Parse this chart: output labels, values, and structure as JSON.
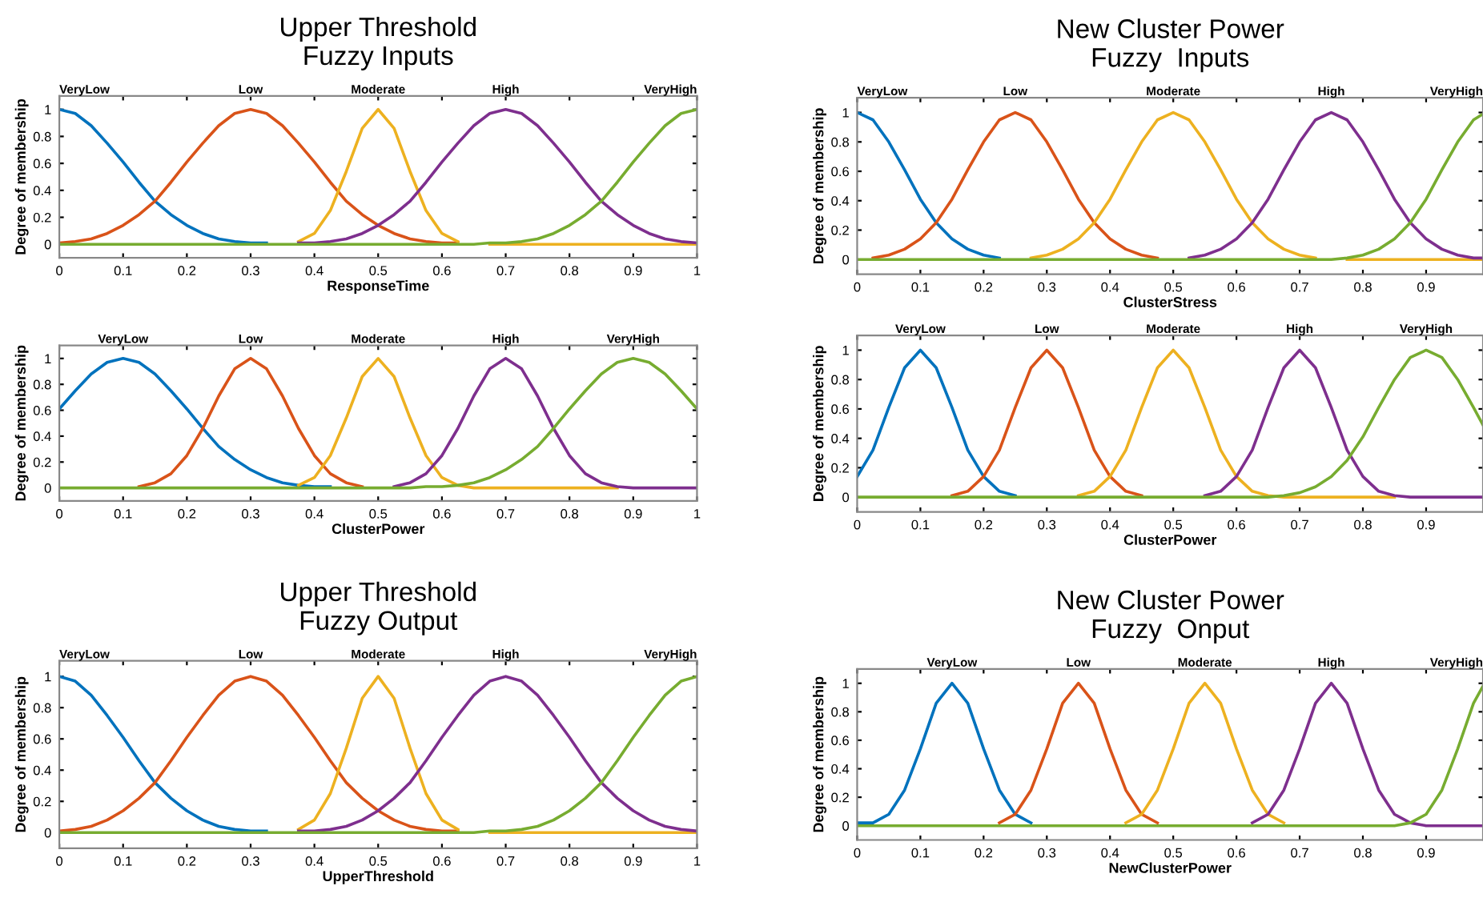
{
  "chart_data": [
    {
      "type": "line",
      "title": "Upper Threshold\nFuzzy Inputs",
      "xlabel": "ResponseTime",
      "ylabel": "Degree of membership",
      "xlim": [
        0,
        1
      ],
      "ylim": [
        -0.1,
        1.1
      ],
      "xticks": [
        0,
        0.1,
        0.2,
        0.3,
        0.4,
        0.5,
        0.6,
        0.7,
        0.8,
        0.9,
        1
      ],
      "yticks": [
        0,
        0.2,
        0.4,
        0.6,
        0.8,
        1
      ],
      "grid": false,
      "legend": false,
      "marker": "none",
      "line_style": "solid",
      "x": [
        0,
        0.025,
        0.05,
        0.075,
        0.1,
        0.125,
        0.15,
        0.175,
        0.2,
        0.225,
        0.25,
        0.275,
        0.3,
        0.325,
        0.35,
        0.375,
        0.4,
        0.425,
        0.45,
        0.475,
        0.5,
        0.525,
        0.55,
        0.575,
        0.6,
        0.625,
        0.65,
        0.675,
        0.7,
        0.725,
        0.75,
        0.775,
        0.8,
        0.825,
        0.85,
        0.875,
        0.9,
        0.925,
        0.95,
        0.975,
        1
      ],
      "series": [
        {
          "name": "VeryLow",
          "color": "#0072bd",
          "values": [
            1,
            0.97,
            0.88,
            0.75,
            0.61,
            0.46,
            0.32,
            0.22,
            0.14,
            0.08,
            0.04,
            0.02,
            0.01,
            0.01,
            null,
            null,
            null,
            null,
            null,
            null,
            null,
            null,
            null,
            null,
            null,
            null,
            null,
            null,
            null,
            null,
            null,
            null,
            null,
            null,
            null,
            null,
            null,
            null,
            null,
            null,
            null
          ]
        },
        {
          "name": "Low",
          "color": "#d95319",
          "values": [
            0.01,
            0.02,
            0.04,
            0.08,
            0.14,
            0.22,
            0.32,
            0.46,
            0.61,
            0.75,
            0.88,
            0.97,
            1,
            0.97,
            0.88,
            0.75,
            0.61,
            0.46,
            0.32,
            0.22,
            0.14,
            0.08,
            0.04,
            0.02,
            0.01,
            0.01,
            null,
            null,
            null,
            null,
            null,
            null,
            null,
            null,
            null,
            null,
            null,
            null,
            null,
            null,
            null
          ]
        },
        {
          "name": "Moderate",
          "color": "#edb120",
          "values": [
            null,
            null,
            null,
            null,
            null,
            null,
            null,
            null,
            null,
            null,
            null,
            null,
            null,
            null,
            null,
            0.02,
            0.08,
            0.25,
            0.54,
            0.86,
            1,
            0.86,
            0.54,
            0.25,
            0.08,
            0.02,
            null,
            0,
            0,
            0,
            0,
            0,
            0,
            0,
            0,
            0,
            0,
            0,
            0,
            0,
            0
          ]
        },
        {
          "name": "High",
          "color": "#7e2f8e",
          "values": [
            null,
            null,
            null,
            null,
            null,
            null,
            null,
            null,
            null,
            null,
            null,
            null,
            null,
            null,
            null,
            0.01,
            0.01,
            0.02,
            0.04,
            0.08,
            0.14,
            0.22,
            0.32,
            0.46,
            0.61,
            0.75,
            0.88,
            0.97,
            1,
            0.97,
            0.88,
            0.75,
            0.61,
            0.46,
            0.32,
            0.22,
            0.14,
            0.08,
            0.04,
            0.02,
            0.01
          ]
        },
        {
          "name": "VeryHigh",
          "color": "#77ac30",
          "values": [
            0,
            0,
            0,
            0,
            0,
            0,
            0,
            0,
            0,
            0,
            0,
            0,
            0,
            0,
            0,
            0,
            0,
            0,
            0,
            0,
            0,
            0,
            0,
            0,
            0,
            0,
            0,
            0.01,
            0.01,
            0.02,
            0.04,
            0.08,
            0.14,
            0.22,
            0.32,
            0.46,
            0.61,
            0.75,
            0.88,
            0.97,
            1
          ]
        }
      ]
    },
    {
      "type": "line",
      "xlabel": "ClusterPower",
      "ylabel": "Degree of membership",
      "xlim": [
        0,
        1
      ],
      "ylim": [
        -0.1,
        1.1
      ],
      "xticks": [
        0,
        0.1,
        0.2,
        0.3,
        0.4,
        0.5,
        0.6,
        0.7,
        0.8,
        0.9,
        1
      ],
      "yticks": [
        0,
        0.2,
        0.4,
        0.6,
        0.8,
        1
      ],
      "grid": false,
      "legend": false,
      "marker": "none",
      "line_style": "solid",
      "x": [
        0,
        0.025,
        0.05,
        0.075,
        0.1,
        0.125,
        0.15,
        0.175,
        0.2,
        0.225,
        0.25,
        0.275,
        0.3,
        0.325,
        0.35,
        0.375,
        0.4,
        0.425,
        0.45,
        0.475,
        0.5,
        0.525,
        0.55,
        0.575,
        0.6,
        0.625,
        0.65,
        0.675,
        0.7,
        0.725,
        0.75,
        0.775,
        0.8,
        0.825,
        0.85,
        0.875,
        0.9,
        0.925,
        0.95,
        0.975,
        1
      ],
      "series": [
        {
          "name": "VeryLow",
          "color": "#0072bd",
          "values": [
            0.61,
            0.75,
            0.88,
            0.97,
            1,
            0.97,
            0.88,
            0.75,
            0.61,
            0.46,
            0.32,
            0.22,
            0.14,
            0.08,
            0.04,
            0.02,
            0.01,
            0.01,
            null,
            null,
            null,
            null,
            null,
            null,
            null,
            null,
            null,
            null,
            null,
            null,
            null,
            null,
            null,
            null,
            null,
            null,
            null,
            null,
            null,
            null,
            null
          ]
        },
        {
          "name": "Low",
          "color": "#d95319",
          "values": [
            null,
            null,
            null,
            null,
            null,
            0.01,
            0.04,
            0.11,
            0.25,
            0.46,
            0.71,
            0.92,
            1,
            0.92,
            0.71,
            0.46,
            0.25,
            0.11,
            0.04,
            0.01,
            null,
            null,
            null,
            null,
            null,
            null,
            null,
            null,
            null,
            null,
            null,
            null,
            null,
            null,
            null,
            null,
            null,
            null,
            null,
            null,
            null
          ]
        },
        {
          "name": "Moderate",
          "color": "#edb120",
          "values": [
            null,
            null,
            null,
            null,
            null,
            null,
            null,
            null,
            null,
            null,
            null,
            null,
            null,
            null,
            null,
            0.02,
            0.08,
            0.25,
            0.54,
            0.86,
            1,
            0.86,
            0.54,
            0.25,
            0.08,
            0.02,
            0,
            0,
            0,
            0,
            0,
            0,
            0,
            0,
            0,
            0,
            null,
            null,
            null,
            null,
            null
          ]
        },
        {
          "name": "High",
          "color": "#7e2f8e",
          "values": [
            null,
            null,
            null,
            null,
            null,
            null,
            null,
            null,
            null,
            null,
            null,
            null,
            null,
            null,
            null,
            null,
            null,
            null,
            null,
            null,
            null,
            0.01,
            0.04,
            0.11,
            0.25,
            0.46,
            0.71,
            0.92,
            1,
            0.92,
            0.71,
            0.46,
            0.25,
            0.11,
            0.04,
            0.01,
            0,
            0,
            0,
            0,
            0
          ]
        },
        {
          "name": "VeryHigh",
          "color": "#77ac30",
          "values": [
            0,
            0,
            0,
            0,
            0,
            0,
            0,
            0,
            0,
            0,
            0,
            0,
            0,
            0,
            0,
            0,
            0,
            0,
            0,
            0,
            0,
            0,
            0,
            0.01,
            0.01,
            0.02,
            0.04,
            0.08,
            0.14,
            0.22,
            0.32,
            0.46,
            0.61,
            0.75,
            0.88,
            0.97,
            1,
            0.97,
            0.88,
            0.75,
            0.61
          ]
        }
      ]
    },
    {
      "type": "line",
      "title": "Upper Threshold\nFuzzy Output",
      "xlabel": "UpperThreshold",
      "ylabel": "Degree of membership",
      "xlim": [
        0,
        1
      ],
      "ylim": [
        -0.1,
        1.1
      ],
      "xticks": [
        0,
        0.1,
        0.2,
        0.3,
        0.4,
        0.5,
        0.6,
        0.7,
        0.8,
        0.9,
        1
      ],
      "yticks": [
        0,
        0.2,
        0.4,
        0.6,
        0.8,
        1
      ],
      "grid": false,
      "legend": false,
      "marker": "none",
      "line_style": "solid",
      "x": [
        0,
        0.025,
        0.05,
        0.075,
        0.1,
        0.125,
        0.15,
        0.175,
        0.2,
        0.225,
        0.25,
        0.275,
        0.3,
        0.325,
        0.35,
        0.375,
        0.4,
        0.425,
        0.45,
        0.475,
        0.5,
        0.525,
        0.55,
        0.575,
        0.6,
        0.625,
        0.65,
        0.675,
        0.7,
        0.725,
        0.75,
        0.775,
        0.8,
        0.825,
        0.85,
        0.875,
        0.9,
        0.925,
        0.95,
        0.975,
        1
      ],
      "series": [
        {
          "name": "VeryLow",
          "color": "#0072bd",
          "values": [
            1,
            0.97,
            0.88,
            0.75,
            0.61,
            0.46,
            0.32,
            0.22,
            0.14,
            0.08,
            0.04,
            0.02,
            0.01,
            0.01,
            null,
            null,
            null,
            null,
            null,
            null,
            null,
            null,
            null,
            null,
            null,
            null,
            null,
            null,
            null,
            null,
            null,
            null,
            null,
            null,
            null,
            null,
            null,
            null,
            null,
            null,
            null
          ]
        },
        {
          "name": "Low",
          "color": "#d95319",
          "values": [
            0.01,
            0.02,
            0.04,
            0.08,
            0.14,
            0.22,
            0.32,
            0.46,
            0.61,
            0.75,
            0.88,
            0.97,
            1,
            0.97,
            0.88,
            0.75,
            0.61,
            0.46,
            0.32,
            0.22,
            0.14,
            0.08,
            0.04,
            0.02,
            0.01,
            0.01,
            null,
            null,
            null,
            null,
            null,
            null,
            null,
            null,
            null,
            null,
            null,
            null,
            null,
            null,
            null
          ]
        },
        {
          "name": "Moderate",
          "color": "#edb120",
          "values": [
            null,
            null,
            null,
            null,
            null,
            null,
            null,
            null,
            null,
            null,
            null,
            null,
            null,
            null,
            null,
            0.02,
            0.08,
            0.25,
            0.54,
            0.86,
            1,
            0.86,
            0.54,
            0.25,
            0.08,
            0.02,
            null,
            0,
            0,
            0,
            0,
            0,
            0,
            0,
            0,
            0,
            0,
            0,
            0,
            0,
            0
          ]
        },
        {
          "name": "High",
          "color": "#7e2f8e",
          "values": [
            null,
            null,
            null,
            null,
            null,
            null,
            null,
            null,
            null,
            null,
            null,
            null,
            null,
            null,
            null,
            0.01,
            0.01,
            0.02,
            0.04,
            0.08,
            0.14,
            0.22,
            0.32,
            0.46,
            0.61,
            0.75,
            0.88,
            0.97,
            1,
            0.97,
            0.88,
            0.75,
            0.61,
            0.46,
            0.32,
            0.22,
            0.14,
            0.08,
            0.04,
            0.02,
            0.01
          ]
        },
        {
          "name": "VeryHigh",
          "color": "#77ac30",
          "values": [
            0,
            0,
            0,
            0,
            0,
            0,
            0,
            0,
            0,
            0,
            0,
            0,
            0,
            0,
            0,
            0,
            0,
            0,
            0,
            0,
            0,
            0,
            0,
            0,
            0,
            0,
            0,
            0.01,
            0.01,
            0.02,
            0.04,
            0.08,
            0.14,
            0.22,
            0.32,
            0.46,
            0.61,
            0.75,
            0.88,
            0.97,
            1
          ]
        }
      ]
    },
    {
      "type": "line",
      "title": "New Cluster Power\nFuzzy  Inputs",
      "xlabel": "ClusterStress",
      "ylabel": "Degree of membership",
      "xlim": [
        0,
        0.99
      ],
      "ylim": [
        -0.1,
        1.1
      ],
      "xticks": [
        0,
        0.1,
        0.2,
        0.3,
        0.4,
        0.5,
        0.6,
        0.7,
        0.8,
        0.9
      ],
      "yticks": [
        0,
        0.2,
        0.4,
        0.6,
        0.8,
        1
      ],
      "grid": false,
      "legend": false,
      "marker": "none",
      "line_style": "solid",
      "x": [
        0,
        0.025,
        0.05,
        0.075,
        0.1,
        0.125,
        0.15,
        0.175,
        0.2,
        0.225,
        0.25,
        0.275,
        0.3,
        0.325,
        0.35,
        0.375,
        0.4,
        0.425,
        0.45,
        0.475,
        0.5,
        0.525,
        0.55,
        0.575,
        0.6,
        0.625,
        0.65,
        0.675,
        0.7,
        0.725,
        0.75,
        0.775,
        0.8,
        0.825,
        0.85,
        0.875,
        0.9,
        0.925,
        0.95,
        0.975,
        0.99
      ],
      "series": [
        {
          "name": "VeryLow",
          "color": "#0072bd",
          "values": [
            1,
            0.95,
            0.8,
            0.61,
            0.41,
            0.25,
            0.14,
            0.07,
            0.03,
            0.01,
            null,
            null,
            null,
            null,
            null,
            null,
            null,
            null,
            null,
            null,
            null,
            null,
            null,
            null,
            null,
            null,
            null,
            null,
            null,
            null,
            null,
            null,
            null,
            null,
            null,
            null,
            null,
            null,
            null,
            null,
            null
          ]
        },
        {
          "name": "Low",
          "color": "#d95319",
          "values": [
            null,
            0.01,
            0.03,
            0.07,
            0.14,
            0.25,
            0.41,
            0.61,
            0.8,
            0.95,
            1,
            0.95,
            0.8,
            0.61,
            0.41,
            0.25,
            0.14,
            0.07,
            0.03,
            0.01,
            null,
            null,
            null,
            null,
            null,
            null,
            null,
            null,
            null,
            null,
            null,
            null,
            null,
            null,
            null,
            null,
            null,
            null,
            null,
            null,
            null
          ]
        },
        {
          "name": "Moderate",
          "color": "#edb120",
          "values": [
            null,
            null,
            null,
            null,
            null,
            null,
            null,
            null,
            null,
            null,
            null,
            0.01,
            0.03,
            0.07,
            0.14,
            0.25,
            0.41,
            0.61,
            0.8,
            0.95,
            1,
            0.95,
            0.8,
            0.61,
            0.41,
            0.25,
            0.14,
            0.07,
            0.03,
            0.01,
            null,
            0,
            0,
            0,
            0,
            0,
            0,
            0,
            0,
            0,
            0
          ]
        },
        {
          "name": "High",
          "color": "#7e2f8e",
          "values": [
            null,
            null,
            null,
            null,
            null,
            null,
            null,
            null,
            null,
            null,
            null,
            null,
            null,
            null,
            null,
            null,
            null,
            null,
            null,
            null,
            null,
            0.01,
            0.03,
            0.07,
            0.14,
            0.25,
            0.41,
            0.61,
            0.8,
            0.95,
            1,
            0.95,
            0.8,
            0.61,
            0.41,
            0.25,
            0.14,
            0.07,
            0.03,
            0.01,
            0.01
          ]
        },
        {
          "name": "VeryHigh",
          "color": "#77ac30",
          "values": [
            0,
            0,
            0,
            0,
            0,
            0,
            0,
            0,
            0,
            0,
            0,
            0,
            0,
            0,
            0,
            0,
            0,
            0,
            0,
            0,
            0,
            0,
            0,
            0,
            0,
            0,
            0,
            0,
            0,
            0,
            0,
            0.01,
            0.03,
            0.07,
            0.14,
            0.25,
            0.41,
            0.61,
            0.8,
            0.95,
            0.99
          ]
        }
      ]
    },
    {
      "type": "line",
      "xlabel": "ClusterPower",
      "ylabel": "Degree of membership",
      "xlim": [
        0,
        0.99
      ],
      "ylim": [
        -0.1,
        1.1
      ],
      "xticks": [
        0,
        0.1,
        0.2,
        0.3,
        0.4,
        0.5,
        0.6,
        0.7,
        0.8,
        0.9
      ],
      "yticks": [
        0,
        0.2,
        0.4,
        0.6,
        0.8,
        1
      ],
      "grid": false,
      "legend": false,
      "marker": "none",
      "line_style": "solid",
      "x": [
        0,
        0.025,
        0.05,
        0.075,
        0.1,
        0.125,
        0.15,
        0.175,
        0.2,
        0.225,
        0.25,
        0.275,
        0.3,
        0.325,
        0.35,
        0.375,
        0.4,
        0.425,
        0.45,
        0.475,
        0.5,
        0.525,
        0.55,
        0.575,
        0.6,
        0.625,
        0.65,
        0.675,
        0.7,
        0.725,
        0.75,
        0.775,
        0.8,
        0.825,
        0.85,
        0.875,
        0.9,
        0.925,
        0.95,
        0.975,
        0.99
      ],
      "series": [
        {
          "name": "VeryLow",
          "color": "#0072bd",
          "values": [
            0.14,
            0.32,
            0.61,
            0.88,
            1,
            0.88,
            0.61,
            0.32,
            0.14,
            0.04,
            0.01,
            null,
            null,
            null,
            null,
            null,
            null,
            null,
            null,
            null,
            null,
            null,
            null,
            null,
            null,
            null,
            null,
            null,
            null,
            null,
            null,
            null,
            null,
            null,
            null,
            null,
            null,
            null,
            null,
            null,
            null
          ]
        },
        {
          "name": "Low",
          "color": "#d95319",
          "values": [
            null,
            null,
            null,
            null,
            null,
            null,
            0.01,
            0.04,
            0.14,
            0.32,
            0.61,
            0.88,
            1,
            0.88,
            0.61,
            0.32,
            0.14,
            0.04,
            0.01,
            null,
            null,
            null,
            null,
            null,
            null,
            null,
            null,
            null,
            null,
            null,
            null,
            null,
            null,
            null,
            null,
            null,
            null,
            null,
            null,
            null,
            null
          ]
        },
        {
          "name": "Moderate",
          "color": "#edb120",
          "values": [
            null,
            null,
            null,
            null,
            null,
            null,
            null,
            null,
            null,
            null,
            null,
            null,
            null,
            null,
            0.01,
            0.04,
            0.14,
            0.32,
            0.61,
            0.88,
            1,
            0.88,
            0.61,
            0.32,
            0.14,
            0.04,
            0.01,
            0,
            0,
            0,
            0,
            0,
            0,
            0,
            0,
            null,
            null,
            null,
            null,
            null,
            null
          ]
        },
        {
          "name": "High",
          "color": "#7e2f8e",
          "values": [
            null,
            null,
            null,
            null,
            null,
            null,
            null,
            null,
            null,
            null,
            null,
            null,
            null,
            null,
            null,
            null,
            null,
            null,
            null,
            null,
            null,
            null,
            0.01,
            0.04,
            0.14,
            0.32,
            0.61,
            0.88,
            1,
            0.88,
            0.61,
            0.32,
            0.14,
            0.04,
            0.01,
            0,
            0,
            0,
            0,
            0,
            0
          ]
        },
        {
          "name": "VeryHigh",
          "color": "#77ac30",
          "values": [
            0,
            0,
            0,
            0,
            0,
            0,
            0,
            0,
            0,
            0,
            0,
            0,
            0,
            0,
            0,
            0,
            0,
            0,
            0,
            0,
            0,
            0,
            0,
            0,
            0,
            0,
            0,
            0.01,
            0.03,
            0.07,
            0.14,
            0.25,
            0.41,
            0.61,
            0.8,
            0.95,
            1,
            0.95,
            0.8,
            0.61,
            0.49
          ]
        }
      ]
    },
    {
      "type": "line",
      "title": "New Cluster Power\nFuzzy  Onput",
      "xlabel": "NewClusterPower",
      "ylabel": "Degree of membership",
      "xlim": [
        0,
        0.99
      ],
      "ylim": [
        -0.1,
        1.1
      ],
      "xticks": [
        0,
        0.1,
        0.2,
        0.3,
        0.4,
        0.5,
        0.6,
        0.7,
        0.8,
        0.9
      ],
      "yticks": [
        0,
        0.2,
        0.4,
        0.6,
        0.8,
        1
      ],
      "grid": false,
      "legend": false,
      "marker": "none",
      "line_style": "solid",
      "x": [
        0,
        0.025,
        0.05,
        0.075,
        0.1,
        0.125,
        0.15,
        0.175,
        0.2,
        0.225,
        0.25,
        0.275,
        0.3,
        0.325,
        0.35,
        0.375,
        0.4,
        0.425,
        0.45,
        0.475,
        0.5,
        0.525,
        0.55,
        0.575,
        0.6,
        0.625,
        0.65,
        0.675,
        0.7,
        0.725,
        0.75,
        0.775,
        0.8,
        0.825,
        0.85,
        0.875,
        0.9,
        0.925,
        0.95,
        0.975,
        0.99
      ],
      "series": [
        {
          "name": "VeryLow",
          "color": "#0072bd",
          "values": [
            0.02,
            0.02,
            0.08,
            0.25,
            0.54,
            0.86,
            1,
            0.86,
            0.54,
            0.25,
            0.08,
            0.02,
            null,
            null,
            null,
            null,
            null,
            null,
            null,
            null,
            null,
            null,
            null,
            null,
            null,
            null,
            null,
            null,
            null,
            null,
            null,
            null,
            null,
            null,
            null,
            null,
            null,
            null,
            null,
            null,
            null
          ]
        },
        {
          "name": "Low",
          "color": "#d95319",
          "values": [
            null,
            null,
            null,
            null,
            null,
            null,
            null,
            null,
            null,
            0.02,
            0.08,
            0.25,
            0.54,
            0.86,
            1,
            0.86,
            0.54,
            0.25,
            0.08,
            0.02,
            null,
            null,
            null,
            null,
            null,
            null,
            null,
            null,
            null,
            null,
            null,
            null,
            null,
            null,
            null,
            null,
            null,
            null,
            null,
            null,
            null
          ]
        },
        {
          "name": "Moderate",
          "color": "#edb120",
          "values": [
            null,
            null,
            null,
            null,
            null,
            null,
            null,
            null,
            null,
            null,
            null,
            null,
            null,
            null,
            null,
            null,
            null,
            0.02,
            0.08,
            0.25,
            0.54,
            0.86,
            1,
            0.86,
            0.54,
            0.25,
            0.08,
            0.02,
            null,
            null,
            null,
            null,
            null,
            null,
            null,
            null,
            null,
            null,
            null,
            null,
            null
          ]
        },
        {
          "name": "High",
          "color": "#7e2f8e",
          "values": [
            null,
            null,
            null,
            null,
            null,
            null,
            null,
            null,
            null,
            null,
            null,
            null,
            null,
            null,
            null,
            null,
            null,
            null,
            null,
            null,
            null,
            null,
            null,
            null,
            null,
            0.02,
            0.08,
            0.25,
            0.54,
            0.86,
            1,
            0.86,
            0.54,
            0.25,
            0.08,
            0.02,
            0,
            0,
            0,
            0,
            0
          ]
        },
        {
          "name": "VeryHigh",
          "color": "#77ac30",
          "values": [
            0,
            0,
            0,
            0,
            0,
            0,
            0,
            0,
            0,
            0,
            0,
            0,
            0,
            0,
            0,
            0,
            0,
            0,
            0,
            0,
            0,
            0,
            0,
            0,
            0,
            0,
            0,
            0,
            0,
            0,
            0,
            0,
            0,
            0,
            0,
            0.02,
            0.08,
            0.25,
            0.54,
            0.86,
            0.98
          ]
        }
      ]
    }
  ]
}
